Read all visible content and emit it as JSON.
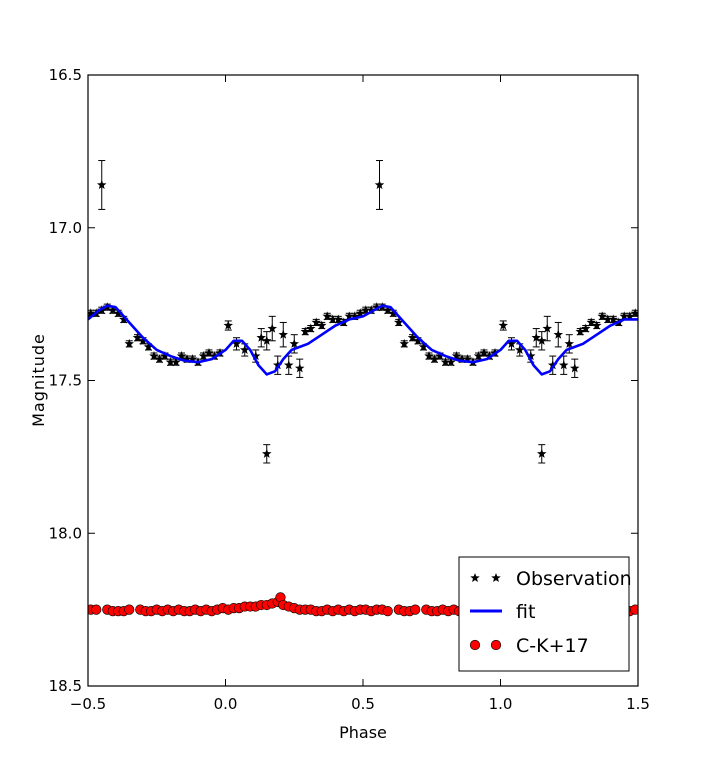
{
  "chart_data": {
    "type": "scatter",
    "xlabel": "Phase",
    "ylabel": "Magnitude",
    "xlim": [
      -0.5,
      1.5
    ],
    "ylim": [
      18.5,
      16.5
    ],
    "y_inverted": true,
    "x_ticks": [
      "−0.5",
      "0.0",
      "0.5",
      "1.0",
      "1.5"
    ],
    "x_tick_values": [
      -0.5,
      0.0,
      0.5,
      1.0,
      1.5
    ],
    "y_ticks": [
      "16.5",
      "17.0",
      "17.5",
      "18.0",
      "18.5"
    ],
    "y_tick_values": [
      16.5,
      17.0,
      17.5,
      18.0,
      18.5
    ],
    "grid": false,
    "legend_position": "lower-right",
    "series": [
      {
        "name": "Observation",
        "marker": "star",
        "color": "#000000",
        "x": [
          -0.49,
          -0.47,
          -0.45,
          -0.43,
          -0.41,
          -0.39,
          -0.37,
          -0.35,
          -0.32,
          -0.3,
          -0.28,
          -0.26,
          -0.24,
          -0.22,
          -0.2,
          -0.18,
          -0.16,
          -0.14,
          -0.12,
          -0.1,
          -0.08,
          -0.06,
          -0.04,
          -0.02,
          0.01,
          0.04,
          0.07,
          0.11,
          0.13,
          0.15,
          0.17,
          0.19,
          0.21,
          0.23,
          0.25,
          0.27,
          0.29,
          0.31,
          0.33,
          0.35,
          0.37,
          0.39,
          0.41,
          0.43,
          0.45,
          0.47,
          0.49,
          0.51,
          0.53,
          0.55,
          0.57,
          0.59,
          0.61,
          0.63,
          0.65,
          0.68,
          0.7,
          0.72,
          0.74,
          0.76,
          0.78,
          0.8,
          0.82,
          0.84,
          0.86,
          0.88,
          0.9,
          0.92,
          0.94,
          0.96,
          0.98,
          1.01,
          1.04,
          1.07,
          1.11,
          1.13,
          1.15,
          1.17,
          1.19,
          1.21,
          1.23,
          1.25,
          1.27,
          1.29,
          1.31,
          1.33,
          1.35,
          1.37,
          1.39,
          1.41,
          1.43,
          1.45,
          1.47,
          1.49,
          -0.45,
          0.56,
          0.15,
          1.15
        ],
        "y": [
          17.28,
          17.28,
          17.27,
          17.26,
          17.27,
          17.28,
          17.3,
          17.38,
          17.36,
          17.37,
          17.39,
          17.42,
          17.43,
          17.42,
          17.44,
          17.44,
          17.42,
          17.43,
          17.43,
          17.44,
          17.42,
          17.41,
          17.42,
          17.41,
          17.32,
          17.38,
          17.4,
          17.42,
          17.36,
          17.37,
          17.33,
          17.45,
          17.35,
          17.45,
          17.38,
          17.46,
          17.34,
          17.33,
          17.31,
          17.32,
          17.29,
          17.3,
          17.3,
          17.31,
          17.29,
          17.29,
          17.28,
          17.27,
          17.27,
          17.26,
          17.26,
          17.27,
          17.28,
          17.31,
          17.38,
          17.36,
          17.37,
          17.39,
          17.42,
          17.43,
          17.42,
          17.44,
          17.44,
          17.42,
          17.43,
          17.43,
          17.44,
          17.42,
          17.41,
          17.42,
          17.41,
          17.32,
          17.38,
          17.4,
          17.42,
          17.36,
          17.37,
          17.33,
          17.45,
          17.35,
          17.45,
          17.38,
          17.46,
          17.34,
          17.33,
          17.31,
          17.32,
          17.29,
          17.3,
          17.3,
          17.31,
          17.29,
          17.29,
          17.28,
          16.86,
          16.86,
          17.74,
          17.74
        ],
        "yerr": [
          0.01,
          0.01,
          0.01,
          0.01,
          0.01,
          0.01,
          0.01,
          0.01,
          0.01,
          0.01,
          0.01,
          0.01,
          0.01,
          0.01,
          0.01,
          0.01,
          0.01,
          0.01,
          0.01,
          0.01,
          0.01,
          0.01,
          0.01,
          0.01,
          0.015,
          0.02,
          0.02,
          0.02,
          0.03,
          0.03,
          0.04,
          0.03,
          0.04,
          0.03,
          0.03,
          0.03,
          0.01,
          0.01,
          0.01,
          0.01,
          0.01,
          0.01,
          0.01,
          0.01,
          0.01,
          0.01,
          0.01,
          0.01,
          0.01,
          0.01,
          0.01,
          0.01,
          0.01,
          0.01,
          0.01,
          0.01,
          0.01,
          0.01,
          0.01,
          0.01,
          0.01,
          0.01,
          0.01,
          0.01,
          0.01,
          0.01,
          0.01,
          0.01,
          0.01,
          0.01,
          0.01,
          0.015,
          0.02,
          0.02,
          0.02,
          0.03,
          0.03,
          0.04,
          0.03,
          0.04,
          0.03,
          0.03,
          0.03,
          0.01,
          0.01,
          0.01,
          0.01,
          0.01,
          0.01,
          0.01,
          0.01,
          0.01,
          0.01,
          0.01,
          0.08,
          0.08,
          0.03,
          0.03
        ]
      },
      {
        "name": "fit",
        "type": "line",
        "color": "#0000ff",
        "x": [
          -0.5,
          -0.46,
          -0.43,
          -0.4,
          -0.35,
          -0.3,
          -0.25,
          -0.2,
          -0.15,
          -0.1,
          -0.05,
          0.0,
          0.03,
          0.06,
          0.09,
          0.12,
          0.15,
          0.18,
          0.21,
          0.24,
          0.27,
          0.3,
          0.35,
          0.4,
          0.45,
          0.5,
          0.54,
          0.57,
          0.6,
          0.65,
          0.7,
          0.75,
          0.8,
          0.85,
          0.9,
          0.95,
          1.0,
          1.03,
          1.06,
          1.09,
          1.12,
          1.15,
          1.18,
          1.21,
          1.24,
          1.27,
          1.3,
          1.35,
          1.4,
          1.45,
          1.5
        ],
        "y": [
          17.3,
          17.27,
          17.255,
          17.26,
          17.31,
          17.36,
          17.4,
          17.42,
          17.435,
          17.44,
          17.43,
          17.4,
          17.37,
          17.37,
          17.4,
          17.45,
          17.48,
          17.47,
          17.43,
          17.4,
          17.39,
          17.38,
          17.35,
          17.32,
          17.3,
          17.29,
          17.27,
          17.255,
          17.26,
          17.31,
          17.36,
          17.4,
          17.42,
          17.435,
          17.44,
          17.43,
          17.4,
          17.37,
          17.37,
          17.4,
          17.45,
          17.48,
          17.47,
          17.43,
          17.4,
          17.39,
          17.38,
          17.35,
          17.32,
          17.3,
          17.3
        ]
      },
      {
        "name": "C-K+17",
        "marker": "circle",
        "color": "#ff0000",
        "x": [
          -0.49,
          -0.47,
          -0.43,
          -0.41,
          -0.39,
          -0.37,
          -0.35,
          -0.31,
          -0.29,
          -0.27,
          -0.25,
          -0.23,
          -0.21,
          -0.19,
          -0.17,
          -0.15,
          -0.13,
          -0.11,
          -0.09,
          -0.07,
          -0.05,
          -0.03,
          -0.01,
          0.01,
          0.03,
          0.05,
          0.07,
          0.09,
          0.11,
          0.13,
          0.15,
          0.17,
          0.19,
          0.2,
          0.21,
          0.23,
          0.25,
          0.27,
          0.29,
          0.31,
          0.33,
          0.35,
          0.37,
          0.39,
          0.41,
          0.43,
          0.45,
          0.47,
          0.49,
          0.51,
          0.53,
          0.55,
          0.57,
          0.59,
          0.63,
          0.65,
          0.67,
          0.69,
          0.73,
          0.75,
          0.77,
          0.79,
          0.81,
          0.83,
          0.85,
          0.87,
          0.89,
          0.91,
          0.93,
          0.95,
          0.97,
          0.99,
          1.01,
          1.03,
          1.05,
          1.07,
          1.09,
          1.11,
          1.13,
          1.15,
          1.17,
          1.19,
          1.2,
          1.21,
          1.23,
          1.25,
          1.27,
          1.29,
          1.31,
          1.33,
          1.35,
          1.37,
          1.39,
          1.41,
          1.43,
          1.45,
          1.47,
          1.49
        ],
        "y": [
          18.25,
          18.25,
          18.25,
          18.255,
          18.255,
          18.255,
          18.25,
          18.25,
          18.255,
          18.255,
          18.25,
          18.255,
          18.25,
          18.255,
          18.25,
          18.255,
          18.255,
          18.25,
          18.255,
          18.25,
          18.255,
          18.25,
          18.245,
          18.25,
          18.245,
          18.245,
          18.24,
          18.24,
          18.24,
          18.235,
          18.235,
          18.23,
          18.225,
          18.21,
          18.235,
          18.24,
          18.245,
          18.25,
          18.25,
          18.25,
          18.255,
          18.255,
          18.25,
          18.255,
          18.25,
          18.255,
          18.25,
          18.255,
          18.25,
          18.25,
          18.255,
          18.25,
          18.25,
          18.255,
          18.25,
          18.255,
          18.255,
          18.25,
          18.25,
          18.255,
          18.255,
          18.25,
          18.255,
          18.25,
          18.255,
          18.25,
          18.255,
          18.255,
          18.25,
          18.255,
          18.25,
          18.245,
          18.25,
          18.245,
          18.245,
          18.24,
          18.24,
          18.24,
          18.235,
          18.235,
          18.23,
          18.225,
          18.21,
          18.235,
          18.24,
          18.245,
          18.25,
          18.25,
          18.25,
          18.255,
          18.255,
          18.25,
          18.255,
          18.25,
          18.255,
          18.25,
          18.255,
          18.25
        ]
      }
    ]
  }
}
